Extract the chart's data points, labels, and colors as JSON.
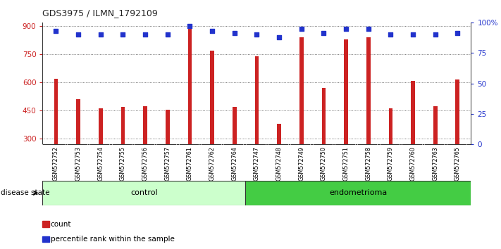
{
  "title": "GDS3975 / ILMN_1792109",
  "samples": [
    "GSM572752",
    "GSM572753",
    "GSM572754",
    "GSM572755",
    "GSM572756",
    "GSM572757",
    "GSM572761",
    "GSM572762",
    "GSM572764",
    "GSM572747",
    "GSM572748",
    "GSM572749",
    "GSM572750",
    "GSM572751",
    "GSM572758",
    "GSM572759",
    "GSM572760",
    "GSM572763",
    "GSM572765"
  ],
  "counts": [
    620,
    510,
    462,
    468,
    472,
    455,
    900,
    770,
    470,
    740,
    380,
    840,
    570,
    830,
    840,
    462,
    610,
    475,
    615
  ],
  "percentiles": [
    93,
    90,
    90,
    90,
    90,
    90,
    97,
    93,
    91,
    90,
    88,
    95,
    91,
    95,
    95,
    90,
    90,
    90,
    91
  ],
  "ylim_left": [
    270,
    920
  ],
  "ylim_right": [
    0,
    100
  ],
  "yticks_left": [
    300,
    450,
    600,
    750,
    900
  ],
  "yticks_right": [
    0,
    25,
    50,
    75,
    100
  ],
  "bar_color": "#cc2222",
  "dot_color": "#2233cc",
  "bar_width": 0.18,
  "control_count": 9,
  "control_color": "#ccffcc",
  "endo_color": "#44cc44",
  "label_control": "control",
  "label_endo": "endometrioma",
  "disease_state_label": "disease state",
  "legend_count": "count",
  "legend_pct": "percentile rank within the sample",
  "grid_color": "#555555",
  "bg_color": "#ffffff",
  "xtick_bg": "#cccccc"
}
